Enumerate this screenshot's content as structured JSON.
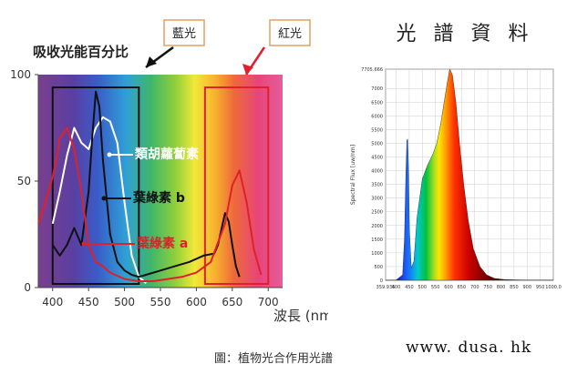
{
  "caption": "圖：植物光合作用光譜",
  "website": "www. dusa. hk",
  "chart_data": [
    {
      "type": "line",
      "title": "吸收光能百分比",
      "xlabel": "波長 (nm)",
      "ylabel": "",
      "xlim": [
        380,
        720
      ],
      "ylim": [
        0,
        100
      ],
      "x_ticks": [
        "400",
        "450",
        "500",
        "550",
        "600",
        "650",
        "700"
      ],
      "y_ticks": [
        "0",
        "50",
        "100"
      ],
      "background": "visible spectrum gradient",
      "annotations": [
        {
          "label": "藍光",
          "color": "#111111"
        },
        {
          "label": "紅光",
          "color": "#e0202a"
        }
      ],
      "bands": [
        {
          "label": "藍光",
          "range": [
            400,
            520
          ],
          "color": "#111111"
        },
        {
          "label": "紅光",
          "range": [
            612,
            700
          ],
          "color": "#e0202a"
        }
      ],
      "series": [
        {
          "name": "類胡蘿蔔素",
          "color": "#ffffff",
          "points": [
            [
              400,
              30
            ],
            [
              410,
              45
            ],
            [
              420,
              62
            ],
            [
              430,
              75
            ],
            [
              440,
              68
            ],
            [
              450,
              65
            ],
            [
              460,
              75
            ],
            [
              470,
              80
            ],
            [
              480,
              78
            ],
            [
              490,
              68
            ],
            [
              500,
              40
            ],
            [
              510,
              15
            ],
            [
              520,
              5
            ],
            [
              530,
              2
            ]
          ]
        },
        {
          "name": "葉綠素 b",
          "color": "#111111",
          "points": [
            [
              400,
              20
            ],
            [
              410,
              15
            ],
            [
              420,
              20
            ],
            [
              430,
              28
            ],
            [
              440,
              20
            ],
            [
              450,
              45
            ],
            [
              455,
              70
            ],
            [
              460,
              92
            ],
            [
              465,
              85
            ],
            [
              470,
              60
            ],
            [
              480,
              25
            ],
            [
              490,
              12
            ],
            [
              500,
              8
            ],
            [
              510,
              6
            ],
            [
              520,
              5
            ],
            [
              530,
              6
            ],
            [
              550,
              8
            ],
            [
              570,
              10
            ],
            [
              590,
              12
            ],
            [
              610,
              15
            ],
            [
              625,
              16
            ],
            [
              630,
              20
            ],
            [
              640,
              35
            ],
            [
              645,
              31
            ],
            [
              650,
              20
            ],
            [
              655,
              10
            ],
            [
              660,
              5
            ]
          ]
        },
        {
          "name": "葉綠素 a",
          "color": "#e0202a",
          "points": [
            [
              380,
              30
            ],
            [
              390,
              40
            ],
            [
              400,
              52
            ],
            [
              405,
              60
            ],
            [
              410,
              70
            ],
            [
              420,
              75
            ],
            [
              430,
              65
            ],
            [
              440,
              45
            ],
            [
              450,
              20
            ],
            [
              460,
              12
            ],
            [
              470,
              10
            ],
            [
              480,
              7
            ],
            [
              500,
              4
            ],
            [
              520,
              3
            ],
            [
              540,
              3
            ],
            [
              560,
              4
            ],
            [
              580,
              5
            ],
            [
              600,
              7
            ],
            [
              620,
              12
            ],
            [
              640,
              30
            ],
            [
              650,
              48
            ],
            [
              660,
              55
            ],
            [
              670,
              40
            ],
            [
              680,
              18
            ],
            [
              690,
              6
            ]
          ]
        }
      ]
    },
    {
      "type": "area",
      "title": "光 譜 資 料",
      "xlabel": "",
      "ylabel": "Spectral Flux [uw/nm]",
      "xlim": [
        359.935,
        1000
      ],
      "ylim": [
        0,
        7705.666
      ],
      "x_ticks": [
        "359.935",
        "400",
        "450",
        "500",
        "550",
        "600",
        "650",
        "700",
        "750",
        "800",
        "850",
        "900",
        "950",
        "1000.0"
      ],
      "y_ticks": [
        "0",
        "500",
        "1000",
        "1500",
        "2000",
        "2500",
        "3000",
        "3500",
        "4000",
        "4500",
        "5000",
        "5500",
        "6000",
        "6500",
        "7000",
        "7705.666"
      ],
      "series": [
        {
          "name": "",
          "points": [
            [
              360,
              0
            ],
            [
              400,
              10
            ],
            [
              425,
              200
            ],
            [
              432,
              1500
            ],
            [
              437,
              3800
            ],
            [
              441,
              5100
            ],
            [
              444,
              5150
            ],
            [
              447,
              4200
            ],
            [
              451,
              1800
            ],
            [
              458,
              450
            ],
            [
              468,
              700
            ],
            [
              480,
              2300
            ],
            [
              500,
              3700
            ],
            [
              520,
              4200
            ],
            [
              540,
              4600
            ],
            [
              555,
              5000
            ],
            [
              570,
              5700
            ],
            [
              585,
              6600
            ],
            [
              597,
              7300
            ],
            [
              605,
              7705
            ],
            [
              615,
              7500
            ],
            [
              628,
              6500
            ],
            [
              642,
              5000
            ],
            [
              658,
              3500
            ],
            [
              675,
              2200
            ],
            [
              695,
              1150
            ],
            [
              720,
              500
            ],
            [
              745,
              200
            ],
            [
              775,
              70
            ],
            [
              815,
              25
            ],
            [
              880,
              10
            ],
            [
              940,
              8
            ],
            [
              1000,
              5
            ]
          ]
        }
      ]
    }
  ]
}
